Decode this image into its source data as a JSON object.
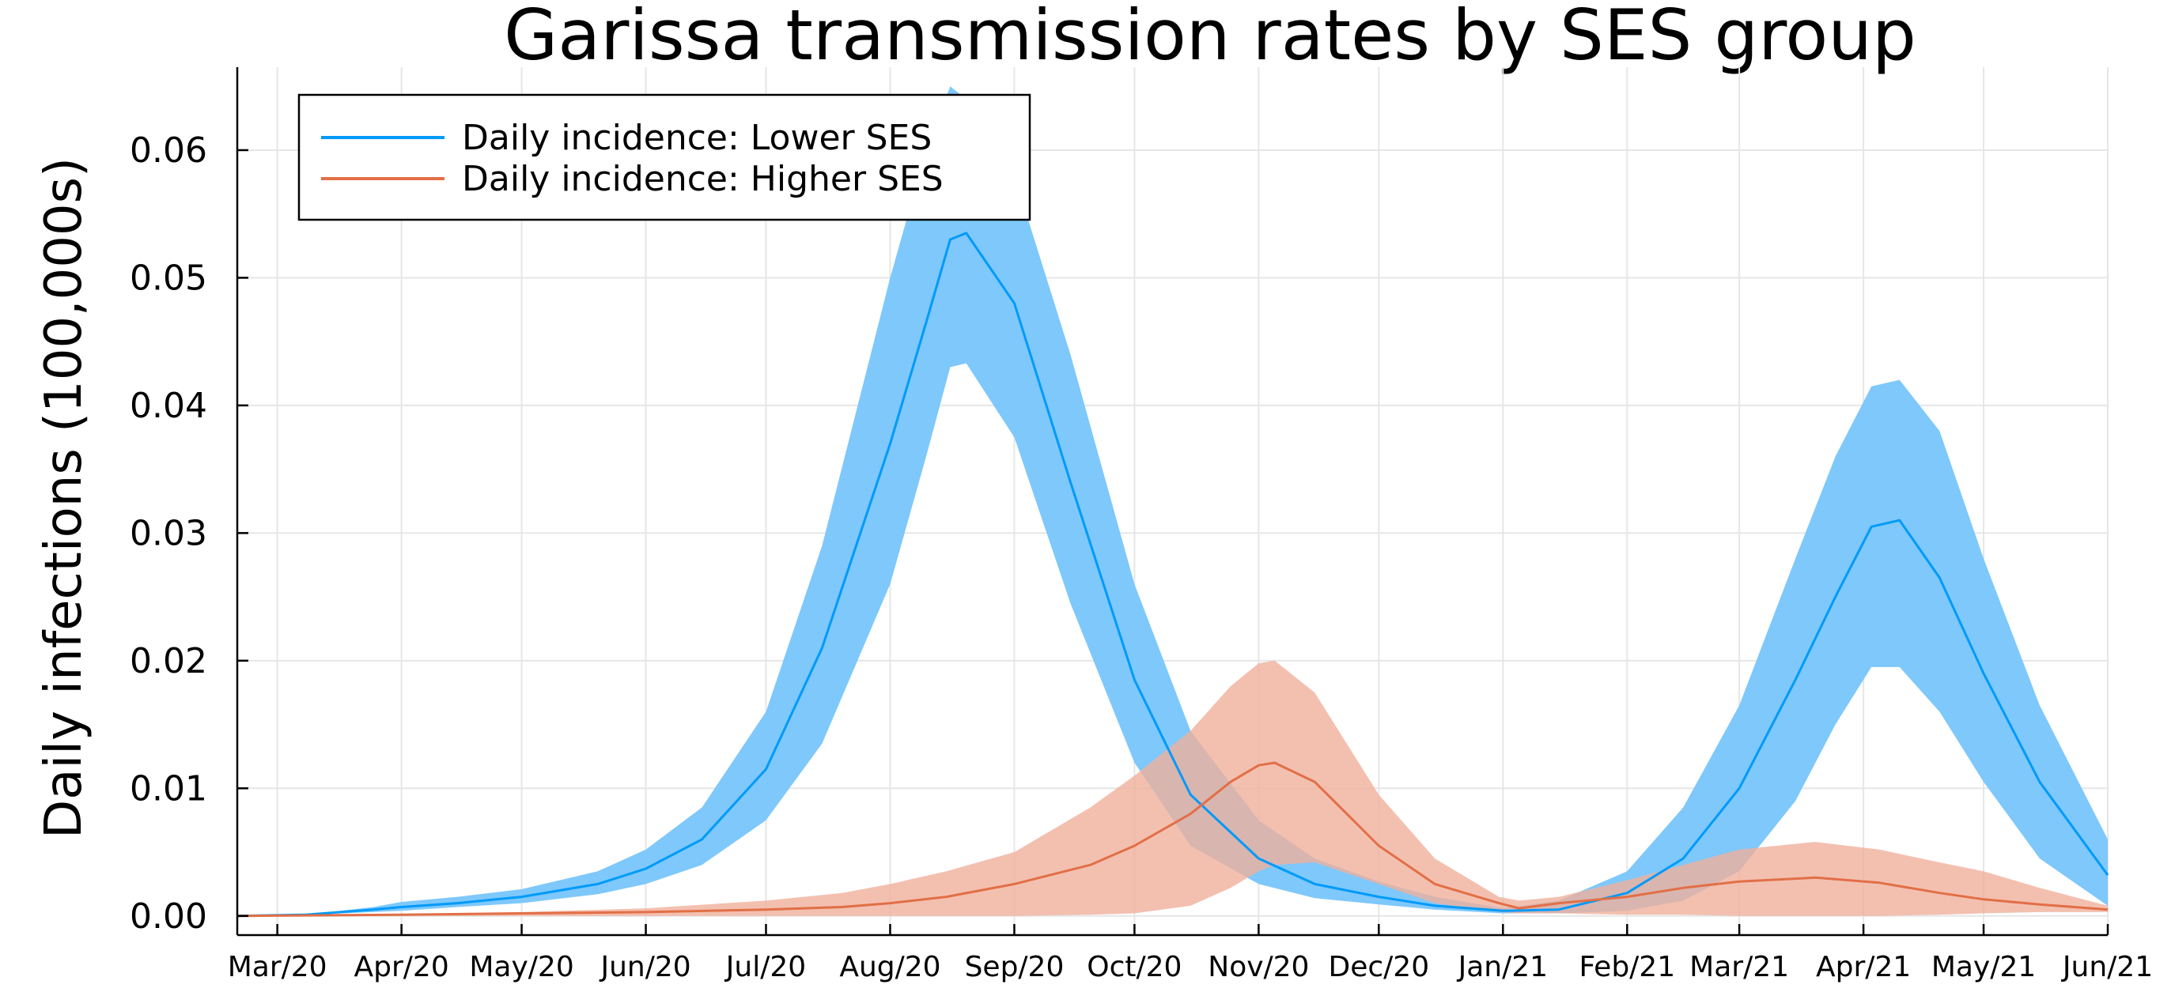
{
  "chart_data": {
    "type": "area",
    "title": "Garissa transmission rates by SES group",
    "xlabel": "",
    "ylabel": "Daily infections (100,000s)",
    "x_tick_labels": [
      "Mar/20",
      "Apr/20",
      "May/20",
      "Jun/20",
      "Jul/20",
      "Aug/20",
      "Sep/20",
      "Oct/20",
      "Nov/20",
      "Dec/20",
      "Jan/21",
      "Feb/21",
      "Mar/21",
      "Apr/21",
      "May/21",
      "Jun/21"
    ],
    "y_tick_labels": [
      "0.00",
      "0.01",
      "0.02",
      "0.03",
      "0.04",
      "0.05",
      "0.06"
    ],
    "xlim": [
      "2020-02-20",
      "2021-06-01"
    ],
    "ylim": [
      -0.0015,
      0.0665
    ],
    "grid": true,
    "legend_position": "top-left",
    "series": [
      {
        "name": "Daily incidence: Lower SES",
        "color": "#009af9",
        "band_color": "#7ec8fb",
        "x": [
          "2020-02-20",
          "2020-03-08",
          "2020-03-25",
          "2020-04-01",
          "2020-04-15",
          "2020-05-01",
          "2020-05-20",
          "2020-06-01",
          "2020-06-15",
          "2020-07-01",
          "2020-07-15",
          "2020-08-01",
          "2020-08-10",
          "2020-08-16",
          "2020-08-20",
          "2020-09-01",
          "2020-09-15",
          "2020-10-01",
          "2020-10-15",
          "2020-11-01",
          "2020-11-15",
          "2020-12-01",
          "2020-12-15",
          "2021-01-01",
          "2021-01-15",
          "2021-02-01",
          "2021-02-15",
          "2021-03-01",
          "2021-03-15",
          "2021-03-25",
          "2021-04-03",
          "2021-04-10",
          "2021-04-20",
          "2021-05-01",
          "2021-05-15",
          "2021-06-01"
        ],
        "y": [
          0,
          0.0001,
          0.0005,
          0.0007,
          0.001,
          0.0015,
          0.0025,
          0.0037,
          0.006,
          0.0115,
          0.021,
          0.037,
          0.0465,
          0.053,
          0.0535,
          0.048,
          0.034,
          0.0185,
          0.0095,
          0.0045,
          0.0025,
          0.0015,
          0.0008,
          0.0004,
          0.0005,
          0.0018,
          0.0045,
          0.01,
          0.0185,
          0.025,
          0.0305,
          0.031,
          0.0265,
          0.019,
          0.0105,
          0.0032
        ],
        "lower": [
          0,
          0.0001,
          0.0003,
          0.0004,
          0.0007,
          0.001,
          0.0017,
          0.0025,
          0.004,
          0.0075,
          0.0135,
          0.026,
          0.036,
          0.043,
          0.0433,
          0.0375,
          0.0245,
          0.012,
          0.0055,
          0.0025,
          0.0014,
          0.0009,
          0.0005,
          0.0002,
          0.0002,
          0.0004,
          0.0012,
          0.0035,
          0.009,
          0.015,
          0.0195,
          0.0195,
          0.016,
          0.0105,
          0.0045,
          0.0008
        ],
        "upper": [
          0,
          0.0001,
          0.0007,
          0.0011,
          0.0015,
          0.0021,
          0.0035,
          0.0052,
          0.0085,
          0.016,
          0.029,
          0.05,
          0.06,
          0.065,
          0.064,
          0.058,
          0.044,
          0.026,
          0.0145,
          0.0075,
          0.0045,
          0.0027,
          0.0015,
          0.0006,
          0.0012,
          0.0035,
          0.0085,
          0.0165,
          0.028,
          0.036,
          0.0415,
          0.042,
          0.038,
          0.028,
          0.0165,
          0.006
        ]
      },
      {
        "name": "Daily incidence: Higher SES",
        "color": "#e26f46",
        "band_color": "#f0b09c",
        "x": [
          "2020-02-20",
          "2020-04-01",
          "2020-05-01",
          "2020-06-01",
          "2020-07-01",
          "2020-07-20",
          "2020-08-01",
          "2020-08-15",
          "2020-09-01",
          "2020-09-20",
          "2020-10-01",
          "2020-10-15",
          "2020-10-25",
          "2020-11-01",
          "2020-11-05",
          "2020-11-15",
          "2020-12-01",
          "2020-12-15",
          "2020-12-31",
          "2021-01-05",
          "2021-01-15",
          "2021-02-01",
          "2021-02-15",
          "2021-03-01",
          "2021-03-20",
          "2021-04-05",
          "2021-04-20",
          "2021-05-01",
          "2021-05-15",
          "2021-06-01"
        ],
        "y": [
          0,
          0.0001,
          0.0002,
          0.0003,
          0.0005,
          0.0007,
          0.001,
          0.0015,
          0.0025,
          0.004,
          0.0055,
          0.008,
          0.0105,
          0.0118,
          0.012,
          0.0105,
          0.0055,
          0.0025,
          0.001,
          0.0006,
          0.001,
          0.0015,
          0.0022,
          0.0027,
          0.003,
          0.0026,
          0.0018,
          0.0013,
          0.0009,
          0.0005
        ],
        "lower": [
          0,
          0,
          0,
          0,
          0,
          0,
          0,
          0,
          0,
          0.0001,
          0.0002,
          0.0008,
          0.0022,
          0.0035,
          0.004,
          0.0042,
          0.0025,
          0.001,
          0.0003,
          0.0002,
          0.0002,
          0.0001,
          0.0001,
          0,
          0,
          0,
          0.0001,
          0.0002,
          0.0003,
          0.0003
        ],
        "upper": [
          0,
          0.0001,
          0.0003,
          0.0006,
          0.0012,
          0.0018,
          0.0025,
          0.0035,
          0.005,
          0.0085,
          0.011,
          0.0145,
          0.018,
          0.0198,
          0.02,
          0.0175,
          0.0095,
          0.0045,
          0.0015,
          0.0012,
          0.0015,
          0.0028,
          0.004,
          0.0052,
          0.0058,
          0.0052,
          0.0042,
          0.0035,
          0.0022,
          0.0008
        ]
      }
    ]
  }
}
